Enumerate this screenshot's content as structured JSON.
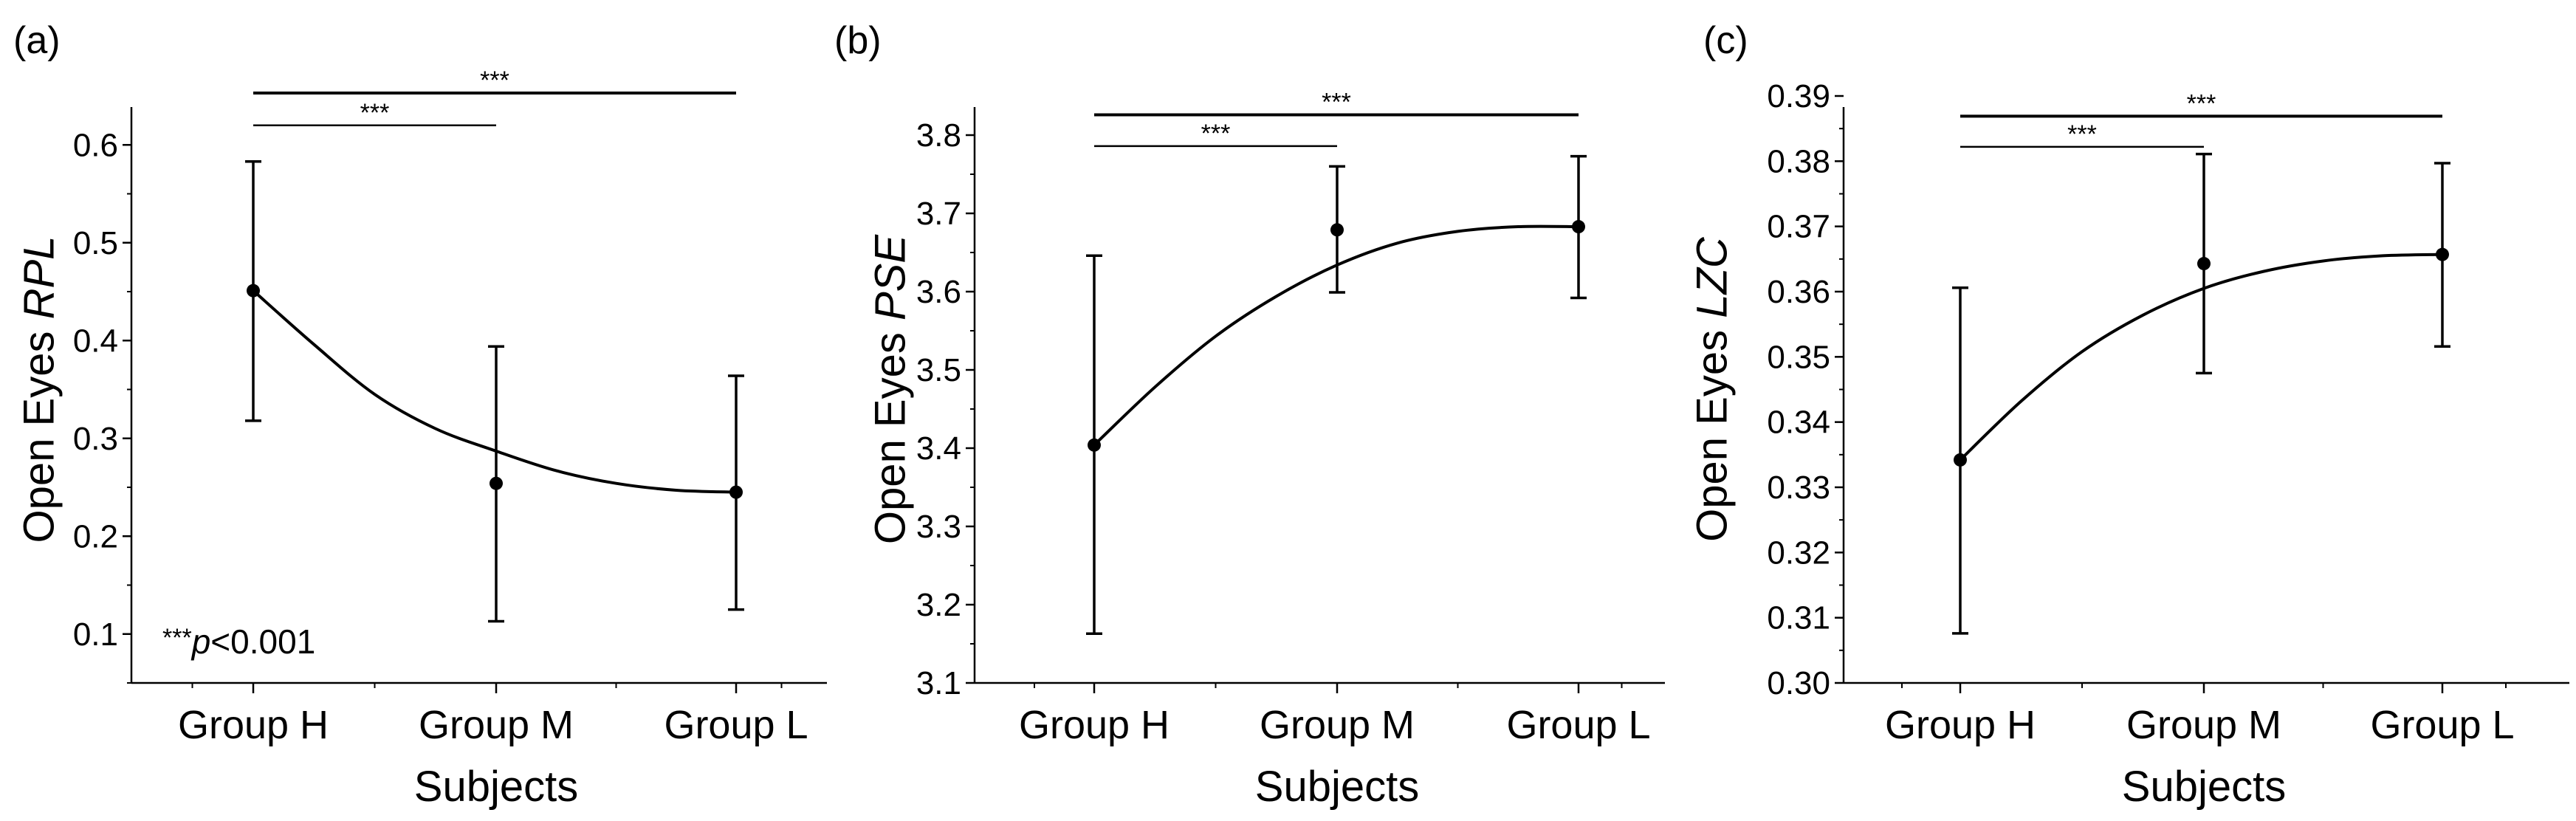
{
  "figure": {
    "note": {
      "stars": "***",
      "p": "p",
      "rest": "<0.001"
    }
  },
  "chart_data": [
    {
      "type": "line",
      "panel_label": "(a)",
      "ylabel_prefix": "Open Eyes ",
      "ylabel_metric": "RPL",
      "xlabel": "Subjects",
      "categories": [
        "Group H",
        "Group M",
        "Group L"
      ],
      "means": [
        0.451,
        0.254,
        0.245
      ],
      "err_upper": [
        0.583,
        0.394,
        0.364
      ],
      "err_lower": [
        0.318,
        0.113,
        0.125
      ],
      "fit_curve": [
        [
          0,
          0.451
        ],
        [
          0.25,
          0.396
        ],
        [
          0.5,
          0.345
        ],
        [
          0.75,
          0.31
        ],
        [
          1,
          0.287
        ],
        [
          1.25,
          0.267
        ],
        [
          1.5,
          0.254
        ],
        [
          1.75,
          0.247
        ],
        [
          2,
          0.245
        ]
      ],
      "ylim": [
        0.05,
        0.65
      ],
      "yticks": [
        0.1,
        0.2,
        0.3,
        0.4,
        0.5,
        0.6
      ],
      "ytick_labels": [
        "0.1",
        "0.2",
        "0.3",
        "0.4",
        "0.5",
        "0.6"
      ],
      "minor_step": 0.05,
      "significance": [
        {
          "from": 0,
          "to": 2,
          "y": 0.653,
          "label": "***"
        },
        {
          "from": 0,
          "to": 1,
          "y": 0.62,
          "label": "***"
        }
      ],
      "show_note": true
    },
    {
      "type": "line",
      "panel_label": "(b)",
      "ylabel_prefix": "Open Eyes ",
      "ylabel_metric": "PSE",
      "xlabel": "Subjects",
      "categories": [
        "Group H",
        "Group M",
        "Group L"
      ],
      "means": [
        3.404,
        3.679,
        3.683
      ],
      "err_upper": [
        3.646,
        3.76,
        3.773
      ],
      "err_lower": [
        3.163,
        3.599,
        3.592
      ],
      "fit_curve": [
        [
          0,
          3.404
        ],
        [
          0.25,
          3.478
        ],
        [
          0.5,
          3.543
        ],
        [
          0.75,
          3.594
        ],
        [
          1,
          3.634
        ],
        [
          1.25,
          3.662
        ],
        [
          1.5,
          3.677
        ],
        [
          1.75,
          3.683
        ],
        [
          2,
          3.683
        ]
      ],
      "ylim": [
        3.1,
        3.85
      ],
      "yticks": [
        3.1,
        3.2,
        3.3,
        3.4,
        3.5,
        3.6,
        3.7,
        3.8
      ],
      "ytick_labels": [
        "3.1",
        "3.2",
        "3.3",
        "3.4",
        "3.5",
        "3.6",
        "3.7",
        "3.8"
      ],
      "minor_step": 0.05,
      "significance": [
        {
          "from": 0,
          "to": 2,
          "y": 3.826,
          "label": "***"
        },
        {
          "from": 0,
          "to": 1,
          "y": 3.786,
          "label": "***"
        }
      ],
      "show_note": false
    },
    {
      "type": "line",
      "panel_label": "(c)",
      "ylabel_prefix": "Open Eyes ",
      "ylabel_metric": "LZC",
      "xlabel": "Subjects",
      "categories": [
        "Group H",
        "Group M",
        "Group L"
      ],
      "means": [
        0.3342,
        0.3643,
        0.3657
      ],
      "err_upper": [
        0.3606,
        0.3811,
        0.3797
      ],
      "err_lower": [
        0.3076,
        0.3475,
        0.3516
      ],
      "fit_curve": [
        [
          0,
          0.3342
        ],
        [
          0.25,
          0.3432
        ],
        [
          0.5,
          0.3508
        ],
        [
          0.75,
          0.3564
        ],
        [
          1,
          0.3605
        ],
        [
          1.25,
          0.3631
        ],
        [
          1.5,
          0.3647
        ],
        [
          1.75,
          0.3655
        ],
        [
          2,
          0.3657
        ]
      ],
      "ylim": [
        0.3,
        0.39
      ],
      "yticks": [
        0.3,
        0.31,
        0.32,
        0.33,
        0.34,
        0.35,
        0.36,
        0.37,
        0.38,
        0.39
      ],
      "ytick_labels": [
        "0.30",
        "0.31",
        "0.32",
        "0.33",
        "0.34",
        "0.35",
        "0.36",
        "0.37",
        "0.38",
        "0.39"
      ],
      "minor_step": 0.005,
      "significance": [
        {
          "from": 0,
          "to": 2,
          "y": 0.3869,
          "label": "***"
        },
        {
          "from": 0,
          "to": 1,
          "y": 0.3822,
          "label": "***"
        }
      ],
      "show_note": false
    }
  ]
}
